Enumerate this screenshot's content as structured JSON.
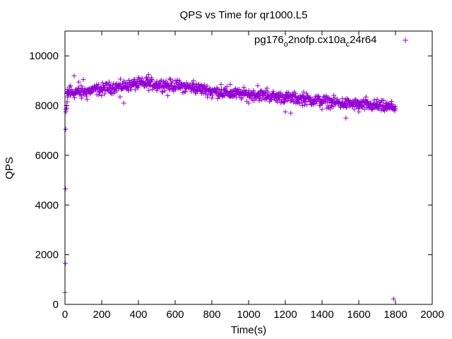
{
  "chart_data": {
    "type": "scatter",
    "title": "QPS vs Time for qr1000.L5",
    "xlabel": "Time(s)",
    "ylabel": "QPS",
    "xlim": [
      0,
      2000
    ],
    "ylim": [
      0,
      11000
    ],
    "xticks": [
      0,
      200,
      400,
      600,
      800,
      1000,
      1200,
      1400,
      1600,
      1800,
      2000
    ],
    "yticks": [
      0,
      2000,
      4000,
      6000,
      8000,
      10000
    ],
    "grid": false,
    "legend_position": "top-right",
    "marker": "plus",
    "series": [
      {
        "name": "pg176_o2nofp.cx10a_c24r64",
        "legend_text": "pg176",
        "legend_sub1": "o",
        "legend_mid": "2nofp.cx10a",
        "legend_sub2": "c",
        "legend_tail": "24r64",
        "color": "#9400d3",
        "trend": [
          [
            0,
            8450
          ],
          [
            50,
            8520
          ],
          [
            100,
            8560
          ],
          [
            150,
            8620
          ],
          [
            200,
            8680
          ],
          [
            250,
            8730
          ],
          [
            300,
            8770
          ],
          [
            350,
            8820
          ],
          [
            400,
            8870
          ],
          [
            450,
            8880
          ],
          [
            500,
            8860
          ],
          [
            550,
            8840
          ],
          [
            600,
            8800
          ],
          [
            650,
            8770
          ],
          [
            700,
            8720
          ],
          [
            750,
            8660
          ],
          [
            800,
            8590
          ],
          [
            850,
            8530
          ],
          [
            900,
            8490
          ],
          [
            950,
            8470
          ],
          [
            1000,
            8460
          ],
          [
            1050,
            8430
          ],
          [
            1100,
            8400
          ],
          [
            1150,
            8360
          ],
          [
            1200,
            8330
          ],
          [
            1250,
            8300
          ],
          [
            1300,
            8260
          ],
          [
            1350,
            8230
          ],
          [
            1400,
            8190
          ],
          [
            1450,
            8140
          ],
          [
            1500,
            8100
          ],
          [
            1550,
            8070
          ],
          [
            1600,
            8040
          ],
          [
            1650,
            8010
          ],
          [
            1700,
            7980
          ],
          [
            1750,
            7950
          ],
          [
            1800,
            7930
          ]
        ],
        "spread": 220,
        "sample_interval": 2,
        "x_end": 1800,
        "points": [
          [
            0,
            480
          ],
          [
            2,
            1650
          ],
          [
            3,
            4650
          ],
          [
            4,
            7050
          ],
          [
            5,
            7750
          ],
          [
            6,
            7850
          ],
          [
            8,
            8000
          ],
          [
            10,
            7900
          ],
          [
            12,
            8150
          ],
          [
            14,
            8350
          ],
          [
            16,
            8500
          ],
          [
            20,
            8600
          ],
          [
            25,
            8750
          ],
          [
            30,
            8800
          ],
          [
            40,
            8500
          ],
          [
            50,
            9200
          ],
          [
            60,
            8650
          ],
          [
            75,
            8950
          ],
          [
            90,
            8300
          ],
          [
            100,
            9050
          ],
          [
            120,
            8250
          ],
          [
            150,
            8650
          ],
          [
            165,
            8650
          ],
          [
            200,
            8400
          ],
          [
            250,
            8700
          ],
          [
            300,
            8350
          ],
          [
            320,
            8100
          ],
          [
            340,
            8900
          ],
          [
            380,
            9050
          ],
          [
            420,
            8950
          ],
          [
            445,
            9150
          ],
          [
            455,
            9250
          ],
          [
            500,
            8600
          ],
          [
            560,
            8400
          ],
          [
            600,
            9000
          ],
          [
            650,
            8550
          ],
          [
            700,
            9000
          ],
          [
            800,
            8300
          ],
          [
            850,
            8850
          ],
          [
            900,
            8850
          ],
          [
            1000,
            8100
          ],
          [
            1050,
            8800
          ],
          [
            1100,
            8700
          ],
          [
            1150,
            8200
          ],
          [
            1200,
            7750
          ],
          [
            1230,
            7700
          ],
          [
            1300,
            8550
          ],
          [
            1400,
            7850
          ],
          [
            1450,
            8000
          ],
          [
            1500,
            7950
          ],
          [
            1530,
            7500
          ],
          [
            1600,
            7750
          ],
          [
            1640,
            8350
          ],
          [
            1700,
            8250
          ],
          [
            1780,
            8050
          ],
          [
            1785,
            7950
          ],
          [
            1790,
            220
          ]
        ]
      }
    ]
  }
}
